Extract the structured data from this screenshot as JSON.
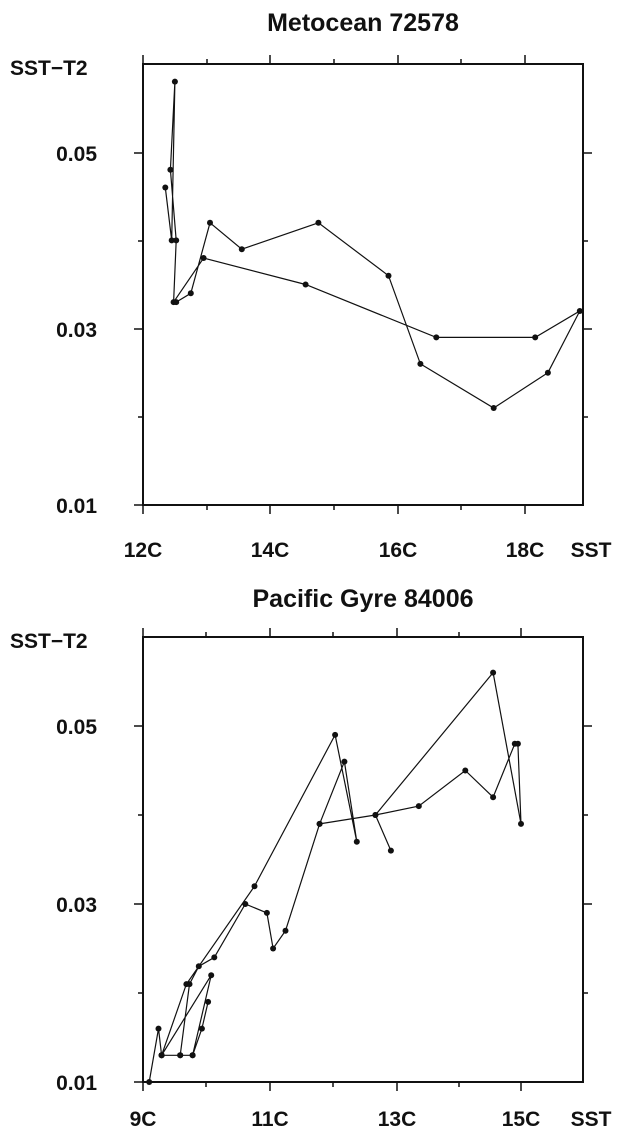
{
  "chart_data": [
    {
      "type": "line",
      "title": "Metocean 72578",
      "xlabel": "SST",
      "ylabel": "SST−T2",
      "xlim": [
        12,
        18.9
      ],
      "ylim": [
        0.01,
        0.06
      ],
      "x_tick_labels": [
        "12C",
        "14C",
        "16C",
        "18C"
      ],
      "x_tick_values": [
        12,
        14,
        16,
        18
      ],
      "x_minor_ticks": [
        13,
        15,
        17
      ],
      "y_tick_labels": [
        "0.01",
        "0.03",
        "0.05"
      ],
      "y_tick_values": [
        0.01,
        0.03,
        0.05
      ],
      "y_minor_ticks": [
        0.02,
        0.04
      ],
      "grid": false,
      "legend": "none",
      "series": [
        {
          "x": [
            12.35,
            12.45,
            12.5,
            12.43,
            12.52,
            12.48,
            12.95,
            14.55,
            16.6,
            18.15,
            18.85,
            18.35,
            17.5,
            16.35,
            15.85,
            14.75,
            13.55,
            13.05,
            12.75,
            12.52
          ],
          "y": [
            0.046,
            0.04,
            0.058,
            0.048,
            0.04,
            0.033,
            0.038,
            0.035,
            0.029,
            0.029,
            0.032,
            0.025,
            0.021,
            0.026,
            0.036,
            0.042,
            0.039,
            0.042,
            0.034,
            0.033
          ]
        }
      ]
    },
    {
      "type": "line",
      "title": "Pacific Gyre 84006",
      "xlabel": "SST",
      "ylabel": "SST−T2",
      "xlim": [
        9,
        16.1
      ],
      "ylim": [
        0.01,
        0.06
      ],
      "x_tick_labels": [
        "9C",
        "11C",
        "13C",
        "15C"
      ],
      "x_tick_values": [
        9,
        11,
        13,
        15
      ],
      "x_minor_ticks": [
        10,
        12,
        14,
        16
      ],
      "y_tick_labels": [
        "0.01",
        "0.03",
        "0.05"
      ],
      "y_tick_values": [
        0.01,
        0.03,
        0.05
      ],
      "y_minor_ticks": [
        0.02,
        0.04
      ],
      "grid": false,
      "legend": "none",
      "series": [
        {
          "x": [
            9.1,
            9.25,
            9.3,
            9.8,
            10.1,
            9.3,
            9.6,
            9.75,
            9.9,
            10.15,
            10.65,
            11.0,
            11.1,
            11.3,
            11.85,
            12.25,
            12.45,
            12.1,
            10.8,
            9.7,
            9.3,
            9.6,
            9.8,
            9.95,
            10.05
          ],
          "y": [
            0.01,
            0.016,
            0.013,
            0.013,
            0.022,
            0.013,
            0.013,
            0.021,
            0.023,
            0.024,
            0.03,
            0.029,
            0.025,
            0.027,
            0.039,
            0.046,
            0.037,
            0.049,
            0.032,
            0.021,
            0.013,
            0.013,
            0.013,
            0.016,
            0.019
          ]
        },
        {
          "x": [
            11.85,
            12.75,
            13.45,
            14.2,
            14.65,
            15.0,
            15.05,
            15.1,
            14.65,
            12.75,
            13.0
          ],
          "y": [
            0.039,
            0.04,
            0.041,
            0.045,
            0.042,
            0.048,
            0.048,
            0.039,
            0.056,
            0.04,
            0.036
          ]
        }
      ]
    }
  ]
}
